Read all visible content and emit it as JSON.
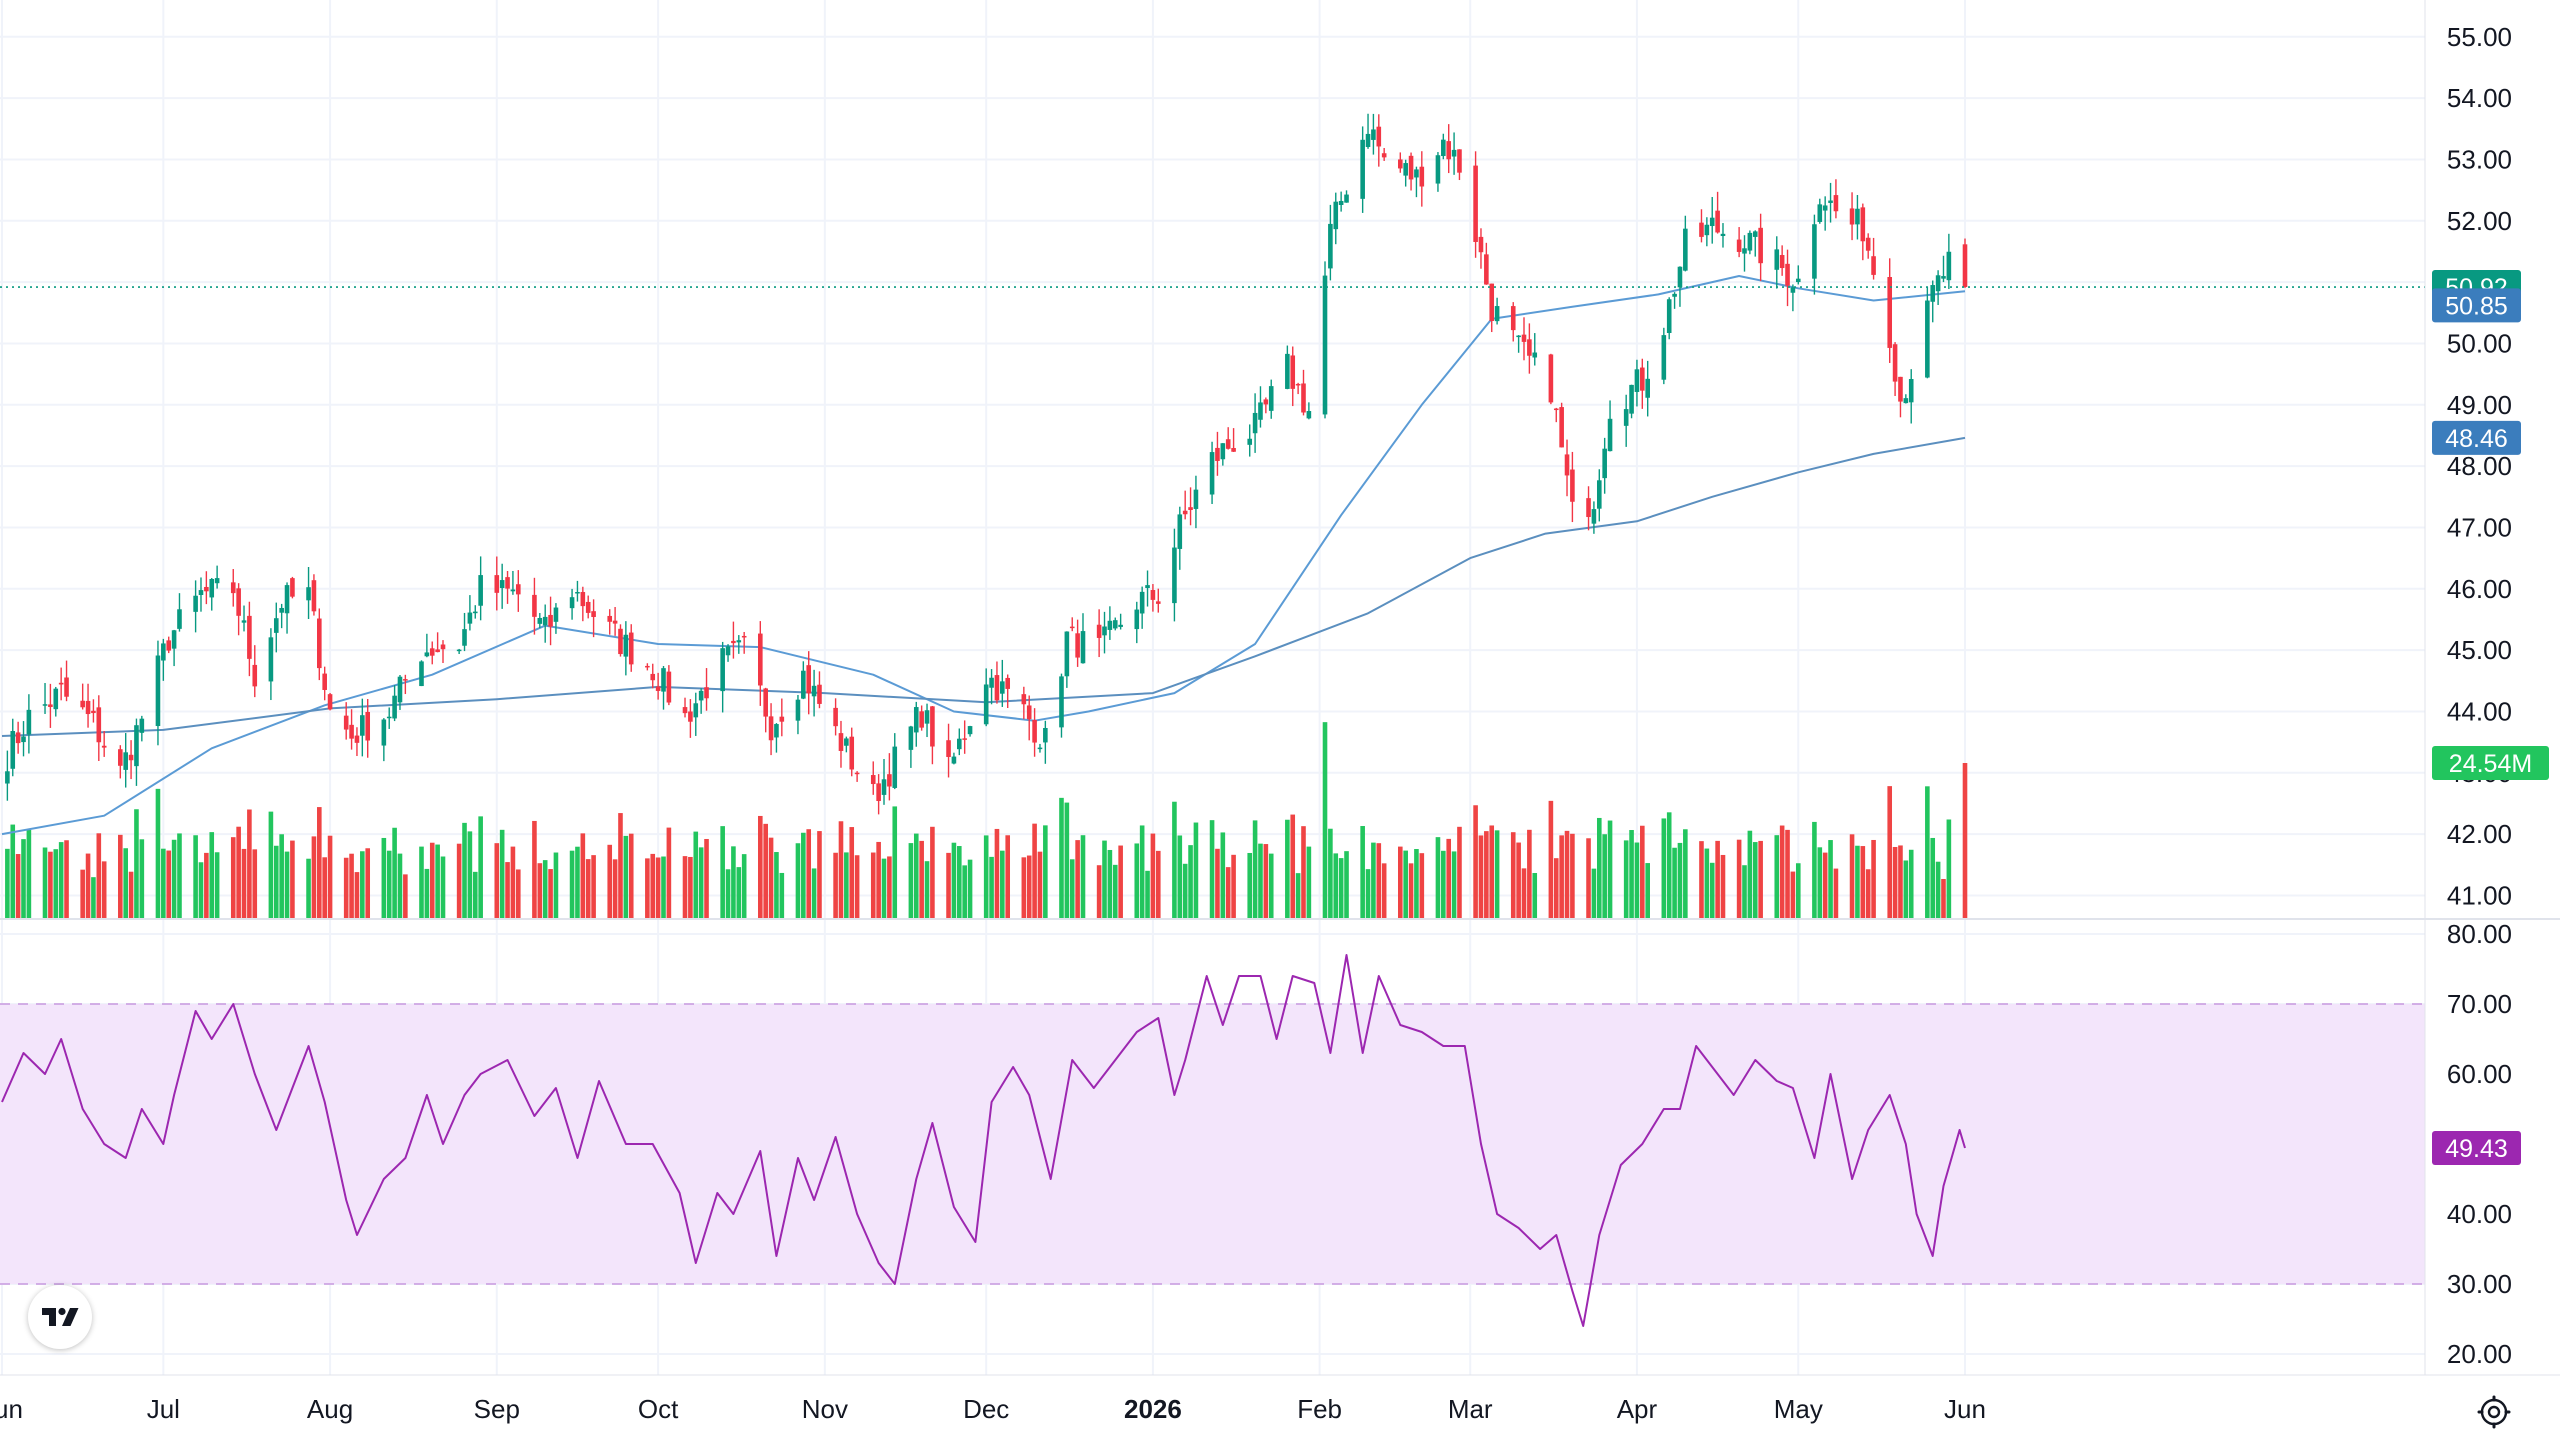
{
  "colors": {
    "up": "#26a69a",
    "down": "#ef5350",
    "candle_up": "#089981",
    "candle_down": "#f23645",
    "vol_up": "#22c55e",
    "vol_down": "#ef4444",
    "ma_fast": "#5b9bd5",
    "ma_slow": "#5b8fbf",
    "rsi_line": "#9c27b0",
    "rsi_band": "#f3e5fb",
    "grid": "#f0f3fa",
    "last_price": "#089981",
    "ma_badge": "#3b7dbd",
    "vol_badge": "#22c55e",
    "rsi_badge": "#9c27b0"
  },
  "icons": {
    "logo": "tradingview-logo-icon",
    "settings": "gear-icon"
  },
  "chart_data": [
    {
      "type": "candlestick",
      "panel": "price",
      "ylim": [
        40.6,
        55.6
      ],
      "y_ticks": [
        "55.00",
        "54.00",
        "53.00",
        "52.00",
        "51.00",
        "50.00",
        "49.00",
        "48.00",
        "47.00",
        "46.00",
        "45.00",
        "44.00",
        "43.00",
        "42.00",
        "41.00"
      ],
      "x_labels": [
        "Jun",
        "Jul",
        "Aug",
        "Sep",
        "Oct",
        "Nov",
        "Dec",
        "2026",
        "Feb",
        "Mar",
        "Apr",
        "May",
        "Jun"
      ],
      "bold_x_label": "2026",
      "anchors": [
        [
          "2025-06-02",
          43.3
        ],
        [
          "2025-06-06",
          43.9
        ],
        [
          "2025-06-12",
          44.3
        ],
        [
          "2025-06-18",
          43.8
        ],
        [
          "2025-06-23",
          43.0
        ],
        [
          "2025-06-27",
          43.9
        ],
        [
          "2025-07-02",
          45.2
        ],
        [
          "2025-07-08",
          45.9
        ],
        [
          "2025-07-14",
          46.0
        ],
        [
          "2025-07-18",
          44.6
        ],
        [
          "2025-07-23",
          45.8
        ],
        [
          "2025-07-28",
          45.9
        ],
        [
          "2025-08-01",
          44.0
        ],
        [
          "2025-08-05",
          43.6
        ],
        [
          "2025-08-12",
          44.0
        ],
        [
          "2025-08-18",
          45.0
        ],
        [
          "2025-08-25",
          45.1
        ],
        [
          "2025-08-29",
          46.0
        ],
        [
          "2025-09-05",
          45.9
        ],
        [
          "2025-09-10",
          45.3
        ],
        [
          "2025-09-15",
          46.0
        ],
        [
          "2025-09-22",
          45.3
        ],
        [
          "2025-09-30",
          44.7
        ],
        [
          "2025-10-06",
          43.9
        ],
        [
          "2025-10-13",
          44.8
        ],
        [
          "2025-10-17",
          45.0
        ],
        [
          "2025-10-22",
          43.8
        ],
        [
          "2025-10-28",
          44.6
        ],
        [
          "2025-11-04",
          43.5
        ],
        [
          "2025-11-10",
          42.6
        ],
        [
          "2025-11-14",
          43.2
        ],
        [
          "2025-11-19",
          44.0
        ],
        [
          "2025-11-24",
          43.0
        ],
        [
          "2025-12-01",
          44.6
        ],
        [
          "2025-12-08",
          44.0
        ],
        [
          "2025-12-12",
          43.5
        ],
        [
          "2025-12-16",
          45.2
        ],
        [
          "2025-12-22",
          45.0
        ],
        [
          "2025-12-29",
          45.8
        ],
        [
          "2026-01-02",
          45.9
        ],
        [
          "2026-01-06",
          47.0
        ],
        [
          "2026-01-12",
          48.1
        ],
        [
          "2026-01-16",
          48.4
        ],
        [
          "2026-01-20",
          48.6
        ],
        [
          "2026-01-26",
          49.6
        ],
        [
          "2026-01-30",
          48.9
        ],
        [
          "2026-02-03",
          51.8
        ],
        [
          "2026-02-06",
          52.6
        ],
        [
          "2026-02-10",
          53.6
        ],
        [
          "2026-02-13",
          53.0
        ],
        [
          "2026-02-19",
          52.7
        ],
        [
          "2026-02-24",
          53.3
        ],
        [
          "2026-02-27",
          52.9
        ],
        [
          "2026-03-02",
          51.8
        ],
        [
          "2026-03-05",
          50.6
        ],
        [
          "2026-03-10",
          49.9
        ],
        [
          "2026-03-16",
          49.3
        ],
        [
          "2026-03-20",
          47.2
        ],
        [
          "2026-03-24",
          47.5
        ],
        [
          "2026-03-27",
          49.0
        ],
        [
          "2026-04-02",
          49.4
        ],
        [
          "2026-04-06",
          50.3
        ],
        [
          "2026-04-10",
          51.6
        ],
        [
          "2026-04-15",
          51.9
        ],
        [
          "2026-04-21",
          51.7
        ],
        [
          "2026-04-27",
          51.3
        ],
        [
          "2026-05-01",
          51.0
        ],
        [
          "2026-05-05",
          52.5
        ],
        [
          "2026-05-09",
          52.0
        ],
        [
          "2026-05-13",
          51.9
        ],
        [
          "2026-05-18",
          50.2
        ],
        [
          "2026-05-20",
          49.1
        ],
        [
          "2026-05-23",
          49.8
        ],
        [
          "2026-05-26",
          50.8
        ],
        [
          "2026-05-29",
          51.3
        ],
        [
          "2026-06-01",
          50.92
        ]
      ],
      "ma_fast": [
        [
          "2025-06-01",
          42.0
        ],
        [
          "2025-06-20",
          42.3
        ],
        [
          "2025-07-10",
          43.4
        ],
        [
          "2025-07-31",
          44.1
        ],
        [
          "2025-08-20",
          44.6
        ],
        [
          "2025-09-10",
          45.4
        ],
        [
          "2025-10-01",
          45.1
        ],
        [
          "2025-10-20",
          45.05
        ],
        [
          "2025-11-10",
          44.6
        ],
        [
          "2025-11-25",
          44.0
        ],
        [
          "2025-12-10",
          43.85
        ],
        [
          "2025-12-20",
          44.0
        ],
        [
          "2026-01-05",
          44.3
        ],
        [
          "2026-01-20",
          45.1
        ],
        [
          "2026-02-05",
          47.2
        ],
        [
          "2026-02-20",
          49.0
        ],
        [
          "2026-03-05",
          50.4
        ],
        [
          "2026-03-20",
          50.6
        ],
        [
          "2026-04-05",
          50.8
        ],
        [
          "2026-04-20",
          51.1
        ],
        [
          "2026-05-01",
          50.9
        ],
        [
          "2026-05-15",
          50.7
        ],
        [
          "2026-06-01",
          50.85
        ]
      ],
      "ma_slow": [
        [
          "2025-06-01",
          43.6
        ],
        [
          "2025-07-01",
          43.7
        ],
        [
          "2025-08-01",
          44.05
        ],
        [
          "2025-09-01",
          44.2
        ],
        [
          "2025-10-01",
          44.4
        ],
        [
          "2025-11-01",
          44.3
        ],
        [
          "2025-12-01",
          44.15
        ],
        [
          "2026-01-01",
          44.3
        ],
        [
          "2026-01-20",
          44.9
        ],
        [
          "2026-02-10",
          45.6
        ],
        [
          "2026-03-01",
          46.5
        ],
        [
          "2026-03-15",
          46.9
        ],
        [
          "2026-04-01",
          47.1
        ],
        [
          "2026-04-15",
          47.5
        ],
        [
          "2026-05-01",
          47.9
        ],
        [
          "2026-05-15",
          48.2
        ],
        [
          "2026-06-01",
          48.46
        ]
      ],
      "last_price": "50.92",
      "ma_fast_last": "50.85",
      "ma_slow_last": "48.46"
    },
    {
      "type": "bar",
      "panel": "volume",
      "last_volume": "24.54M",
      "series_name": "Volume"
    },
    {
      "type": "line",
      "panel": "rsi",
      "ylim": [
        17,
        82
      ],
      "y_ticks": [
        "80.00",
        "70.00",
        "60.00",
        "50.00",
        "40.00",
        "30.00",
        "20.00"
      ],
      "band": [
        30,
        70
      ],
      "points": [
        [
          "2025-06-01",
          56
        ],
        [
          "2025-06-05",
          63
        ],
        [
          "2025-06-09",
          60
        ],
        [
          "2025-06-12",
          65
        ],
        [
          "2025-06-16",
          55
        ],
        [
          "2025-06-20",
          50
        ],
        [
          "2025-06-24",
          48
        ],
        [
          "2025-06-27",
          55
        ],
        [
          "2025-07-01",
          50
        ],
        [
          "2025-07-03",
          57
        ],
        [
          "2025-07-07",
          69
        ],
        [
          "2025-07-10",
          65
        ],
        [
          "2025-07-14",
          70
        ],
        [
          "2025-07-18",
          60
        ],
        [
          "2025-07-22",
          52
        ],
        [
          "2025-07-25",
          58
        ],
        [
          "2025-07-28",
          64
        ],
        [
          "2025-07-31",
          56
        ],
        [
          "2025-08-04",
          42
        ],
        [
          "2025-08-06",
          37
        ],
        [
          "2025-08-11",
          45
        ],
        [
          "2025-08-15",
          48
        ],
        [
          "2025-08-19",
          57
        ],
        [
          "2025-08-22",
          50
        ],
        [
          "2025-08-26",
          57
        ],
        [
          "2025-08-29",
          60
        ],
        [
          "2025-09-03",
          62
        ],
        [
          "2025-09-08",
          54
        ],
        [
          "2025-09-12",
          58
        ],
        [
          "2025-09-16",
          48
        ],
        [
          "2025-09-20",
          59
        ],
        [
          "2025-09-25",
          50
        ],
        [
          "2025-09-30",
          50
        ],
        [
          "2025-10-05",
          43
        ],
        [
          "2025-10-08",
          33
        ],
        [
          "2025-10-12",
          43
        ],
        [
          "2025-10-15",
          40
        ],
        [
          "2025-10-20",
          49
        ],
        [
          "2025-10-23",
          34
        ],
        [
          "2025-10-27",
          48
        ],
        [
          "2025-10-30",
          42
        ],
        [
          "2025-11-03",
          51
        ],
        [
          "2025-11-07",
          40
        ],
        [
          "2025-11-11",
          33
        ],
        [
          "2025-11-14",
          30
        ],
        [
          "2025-11-18",
          45
        ],
        [
          "2025-11-21",
          53
        ],
        [
          "2025-11-25",
          41
        ],
        [
          "2025-11-29",
          36
        ],
        [
          "2025-12-02",
          56
        ],
        [
          "2025-12-06",
          61
        ],
        [
          "2025-12-09",
          57
        ],
        [
          "2025-12-13",
          45
        ],
        [
          "2025-12-17",
          62
        ],
        [
          "2025-12-21",
          58
        ],
        [
          "2025-12-25",
          62
        ],
        [
          "2025-12-29",
          66
        ],
        [
          "2026-01-02",
          68
        ],
        [
          "2026-01-05",
          57
        ],
        [
          "2026-01-07",
          62
        ],
        [
          "2026-01-11",
          74
        ],
        [
          "2026-01-14",
          67
        ],
        [
          "2026-01-17",
          74
        ],
        [
          "2026-01-21",
          74
        ],
        [
          "2026-01-24",
          65
        ],
        [
          "2026-01-27",
          74
        ],
        [
          "2026-01-31",
          73
        ],
        [
          "2026-02-03",
          63
        ],
        [
          "2026-02-06",
          77
        ],
        [
          "2026-02-09",
          63
        ],
        [
          "2026-02-12",
          74
        ],
        [
          "2026-02-16",
          67
        ],
        [
          "2026-02-20",
          66
        ],
        [
          "2026-02-24",
          64
        ],
        [
          "2026-02-28",
          64
        ],
        [
          "2026-03-03",
          50
        ],
        [
          "2026-03-06",
          40
        ],
        [
          "2026-03-10",
          38
        ],
        [
          "2026-03-14",
          35
        ],
        [
          "2026-03-17",
          37
        ],
        [
          "2026-03-20",
          29
        ],
        [
          "2026-03-22",
          24
        ],
        [
          "2026-03-25",
          37
        ],
        [
          "2026-03-29",
          47
        ],
        [
          "2026-04-02",
          50
        ],
        [
          "2026-04-06",
          55
        ],
        [
          "2026-04-09",
          55
        ],
        [
          "2026-04-12",
          64
        ],
        [
          "2026-04-16",
          60
        ],
        [
          "2026-04-19",
          57
        ],
        [
          "2026-04-23",
          62
        ],
        [
          "2026-04-27",
          59
        ],
        [
          "2026-04-30",
          58
        ],
        [
          "2026-05-04",
          48
        ],
        [
          "2026-05-07",
          60
        ],
        [
          "2026-05-11",
          45
        ],
        [
          "2026-05-14",
          52
        ],
        [
          "2026-05-18",
          57
        ],
        [
          "2026-05-21",
          50
        ],
        [
          "2026-05-23",
          40
        ],
        [
          "2026-05-26",
          34
        ],
        [
          "2026-05-28",
          44
        ],
        [
          "2026-05-31",
          52
        ],
        [
          "2026-06-01",
          49.43
        ]
      ],
      "last_value": "49.43"
    }
  ]
}
